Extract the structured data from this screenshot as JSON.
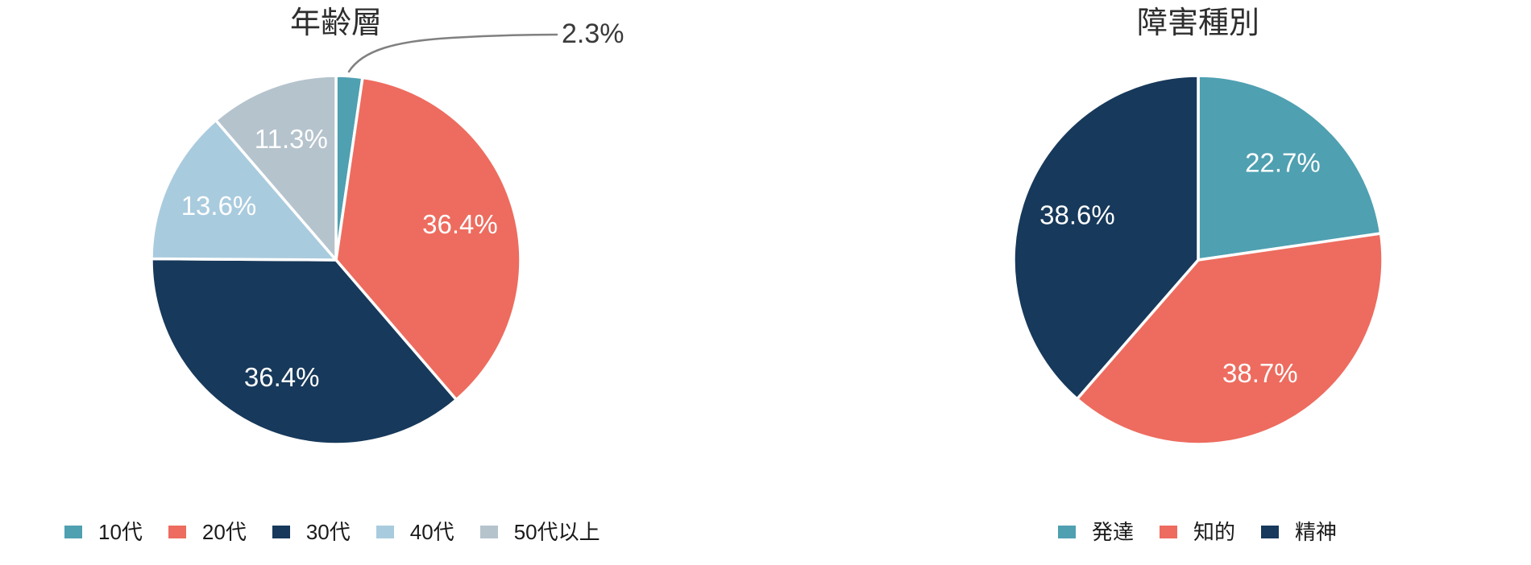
{
  "chart_data": [
    {
      "type": "pie",
      "title": "年齢層",
      "categories": [
        "10代",
        "20代",
        "30代",
        "40代",
        "50代以上"
      ],
      "values": [
        2.3,
        36.4,
        36.4,
        13.6,
        11.3
      ],
      "labels": [
        "2.3%",
        "36.4%",
        "36.4%",
        "13.6%",
        "11.3%"
      ],
      "colors": [
        "#4FA0B1",
        "#ED6C5F",
        "#17395B",
        "#A9CBDE",
        "#B5C3CD"
      ],
      "unit": "percent",
      "start_angle": "12-oclock",
      "direction": "clockwise",
      "legend_position": "bottom",
      "callout_indices": [
        0
      ]
    },
    {
      "type": "pie",
      "title": "障害種別",
      "categories": [
        "発達",
        "知的",
        "精神"
      ],
      "values": [
        22.7,
        38.7,
        38.6
      ],
      "labels": [
        "22.7%",
        "38.7%",
        "38.6%"
      ],
      "colors": [
        "#4FA0B1",
        "#ED6C5F",
        "#17395B"
      ],
      "unit": "percent",
      "start_angle": "12-oclock",
      "direction": "clockwise",
      "legend_position": "bottom",
      "callout_indices": []
    }
  ],
  "style": {
    "background_color": "#FFFFFF",
    "slice_border_color": "#FFFFFF",
    "slice_label_color": "#FFFFFF",
    "callout_text_color": "#3A3A3A",
    "callout_line_color": "#808080",
    "title_color": "#2E2E2E",
    "legend_text_color": "#1A1A1A"
  }
}
